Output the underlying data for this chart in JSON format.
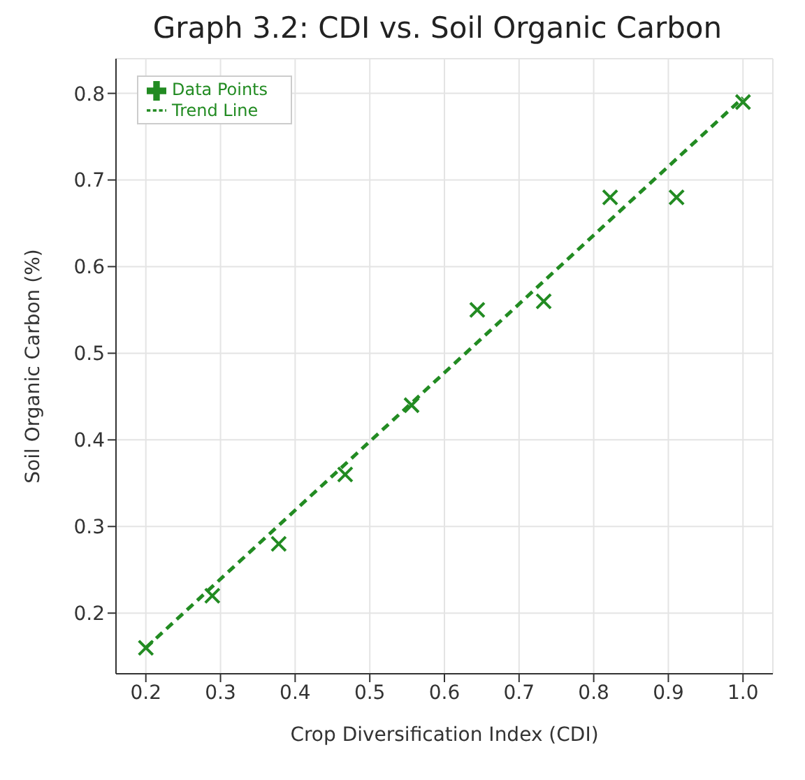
{
  "chart_data": {
    "type": "scatter",
    "title": "Graph 3.2: CDI vs. Soil Organic Carbon",
    "xlabel": "Crop Diversification Index (CDI)",
    "ylabel": "Soil Organic Carbon (%)",
    "x": [
      0.2,
      0.289,
      0.378,
      0.467,
      0.556,
      0.644,
      0.733,
      0.822,
      0.911,
      1.0
    ],
    "series": [
      {
        "name": "Data Points",
        "color": "#228b22",
        "marker": "cross",
        "values": [
          0.16,
          0.22,
          0.28,
          0.36,
          0.44,
          0.55,
          0.56,
          0.68,
          0.68,
          0.79
        ]
      },
      {
        "name": "Trend Line",
        "type": "line",
        "color": "#228b22",
        "line_style": "dashed",
        "marker": "none",
        "x": [
          0.2,
          1.0
        ],
        "values": [
          0.16,
          0.795
        ]
      }
    ],
    "xlim": [
      0.16,
      1.04
    ],
    "xticks": [
      0.2,
      0.3,
      0.4,
      0.5,
      0.6,
      0.7,
      0.8,
      0.9,
      {
        "value": 1,
        "label": "1.0"
      }
    ],
    "ylim": [
      0.13,
      0.84
    ],
    "yticks": [
      0.2,
      0.3,
      0.4,
      0.5,
      0.6,
      0.7,
      0.8
    ],
    "grid": true,
    "legend": "top left"
  }
}
